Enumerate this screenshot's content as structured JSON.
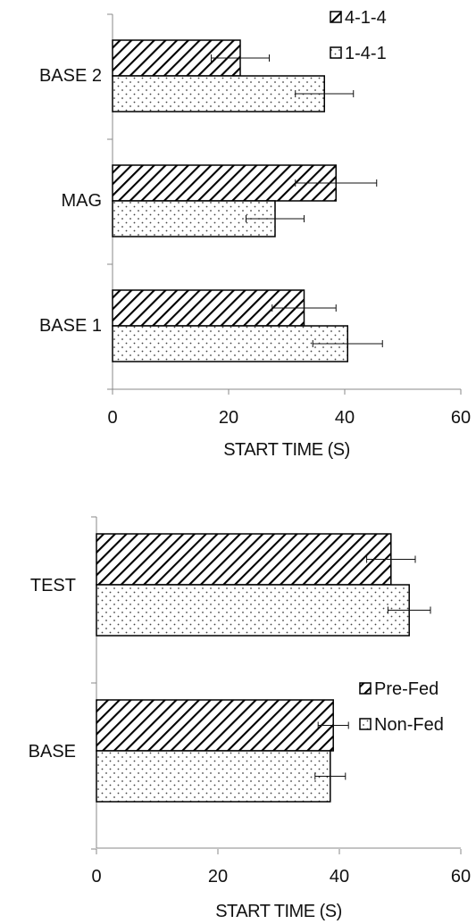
{
  "chart_data": [
    {
      "type": "bar",
      "orientation": "horizontal",
      "categories": [
        "BASE 2",
        "MAG",
        "BASE 1"
      ],
      "series": [
        {
          "name": "4-1-4",
          "pattern": "diagonal-hatch",
          "values": [
            22,
            38.5,
            33
          ],
          "errors": [
            5,
            7,
            5.5
          ]
        },
        {
          "name": "1-4-1",
          "pattern": "dots",
          "values": [
            36.5,
            28,
            40.5
          ],
          "errors": [
            5,
            5,
            6
          ]
        }
      ],
      "xlabel": "START TIME (S)",
      "xlim": [
        0,
        60
      ],
      "xticks": [
        "0",
        "20",
        "40",
        "60"
      ],
      "legend": "top-right",
      "grid": false
    },
    {
      "type": "bar",
      "orientation": "horizontal",
      "categories": [
        "TEST",
        "BASE"
      ],
      "series": [
        {
          "name": "Pre-Fed",
          "pattern": "diagonal-hatch",
          "values": [
            48.5,
            39
          ],
          "errors": [
            4,
            2.5
          ]
        },
        {
          "name": "Non-Fed",
          "pattern": "dots",
          "values": [
            51.5,
            38.5
          ],
          "errors": [
            3.5,
            2.5
          ]
        }
      ],
      "xlabel": "START TIME (S)",
      "xlim": [
        0,
        60
      ],
      "xticks": [
        "0",
        "20",
        "40",
        "60"
      ],
      "legend": "right",
      "grid": false
    }
  ]
}
